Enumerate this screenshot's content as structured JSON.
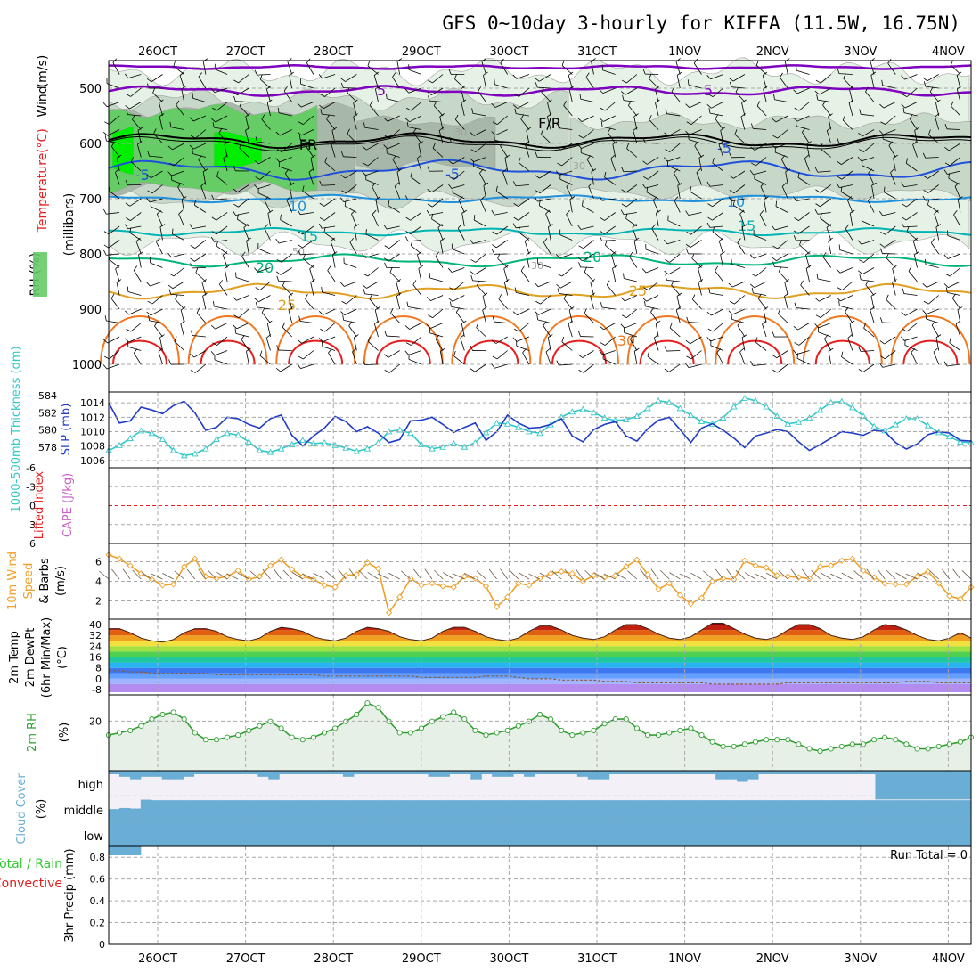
{
  "title": "GFS 0~10day 3-hourly for KIFFA (11.5W, 16.75N)",
  "colors": {
    "frame": "#000000",
    "grid": "#a8a8a8",
    "rh_light": "#e6f2e6",
    "rh_mid": "#c8d8c8",
    "rh_dark": "#a8b8a8",
    "rh_green": "#66cc66",
    "rh_bright": "#00ee00",
    "wind": "#000000",
    "temp_purple": "#8000c0",
    "temp_blue": "#1e50dc",
    "temp_sky": "#1e90dc",
    "temp_teal": "#00b4b4",
    "temp_green": "#00b478",
    "temp_gold": "#e0a020",
    "temp_orange": "#f07820",
    "temp_red": "#e61e1e",
    "slp": "#1e3cc8",
    "thickness": "#32c8c8",
    "cape": "#c864c8",
    "lifted": "#e61e1e",
    "wind10": "#f0a028",
    "rh2m": "#32a032",
    "rh2m_fill": "#e6f0e6",
    "cloud": "#6aaed6",
    "cloud_bg": "#f4f0f8",
    "precip_total": "#32c832",
    "precip_conv": "#e61e1e",
    "dewpt": "#8c5a3c"
  },
  "x_ticks": [
    "26OCT",
    "27OCT",
    "28OCT",
    "29OCT",
    "30OCT",
    "31OCT",
    "1NOV",
    "2NOV",
    "3NOV",
    "4NOV"
  ],
  "panels": {
    "upper": {
      "y_label_parts": [
        "RH (%)",
        "Temperature",
        "(°C)",
        "Wind",
        "(m/s)"
      ],
      "y_unit": "(millibars)",
      "y_ticks": [
        "500",
        "600",
        "700",
        "800",
        "900",
        "1000"
      ],
      "contour_labels": [
        "5",
        "5",
        "FR",
        "F/R",
        "-5",
        "-5",
        "-5",
        "10",
        "10",
        "15",
        "15",
        "20",
        "20",
        "25",
        "25",
        "30",
        "30",
        "30",
        "50",
        "50",
        "30"
      ]
    },
    "pressure": {
      "y_label_left": "1000-500mb Thickness (dm)",
      "y_label_right": "SLP (mb)",
      "y_ticks_left": [
        "584",
        "582",
        "580",
        "578"
      ],
      "y_ticks_right": [
        "1014",
        "1012",
        "1010",
        "1008",
        "1006"
      ]
    },
    "stability": {
      "y_label_left": "Lifted Index",
      "y_label_right": "CAPE (J/kg)",
      "y_ticks": [
        "-6",
        "-3",
        "0",
        "3",
        "6"
      ]
    },
    "wind10m": {
      "y_label": [
        "10m Wind",
        "Speed",
        "& Barbs",
        "(m/s)"
      ],
      "y_ticks": [
        "6",
        "4",
        "2"
      ]
    },
    "temp2m": {
      "y_label": [
        "2m Temp",
        "2m DewPt",
        "(6hr Min/Max)",
        "(°C)"
      ],
      "y_ticks": [
        "40",
        "32",
        "24",
        "16",
        "8",
        "0",
        "-8"
      ]
    },
    "rh2m": {
      "y_label": [
        "2m RH",
        "(%)"
      ],
      "y_ticks": [
        "20"
      ]
    },
    "cloud": {
      "y_label": [
        "Cloud Cover",
        "(%)"
      ],
      "levels": [
        "high",
        "middle",
        "low"
      ]
    },
    "precip": {
      "y_label": [
        "Total / Rain",
        "Convective",
        "3hr Precip (mm)"
      ],
      "y_ticks": [
        "0.8",
        "0.6",
        "0.4",
        "0.2",
        "0"
      ],
      "run_total": "Run Total = 0"
    }
  },
  "chart_data": {
    "type": "line",
    "n_steps": 81,
    "step_hours": 3,
    "slp_mb": [
      1014.0,
      1011.2,
      1011.5,
      1013.4,
      1013.0,
      1012.5,
      1013.6,
      1014.2,
      1012.6,
      1010.2,
      1010.6,
      1012.0,
      1011.8,
      1011.0,
      1010.5,
      1011.8,
      1012.3,
      1009.5,
      1008.0,
      1009.4,
      1010.5,
      1012.1,
      1011.4,
      1010.0,
      1010.7,
      1009.8,
      1008.5,
      1008.9,
      1011.5,
      1011.6,
      1012.0,
      1011.0,
      1009.9,
      1010.6,
      1011.2,
      1008.8,
      1010.0,
      1012.3,
      1011.2,
      1010.5,
      1010.6,
      1011.0,
      1011.8,
      1009.4,
      1008.6,
      1010.3,
      1011.0,
      1011.4,
      1009.4,
      1008.7,
      1010.4,
      1011.6,
      1012.0,
      1010.3,
      1008.5,
      1010.5,
      1011.1,
      1010.2,
      1009.1,
      1007.8,
      1009.4,
      1009.8,
      1010.3,
      1010.0,
      1008.6,
      1007.4,
      1008.2,
      1009.1,
      1010.0,
      1009.8,
      1009.5,
      1010.2,
      1010.0,
      1008.5,
      1007.6,
      1008.3,
      1009.6,
      1010.0,
      1009.8,
      1008.8,
      1008.7
    ],
    "thickness_dm": [
      577.6,
      578.2,
      579.0,
      579.9,
      579.6,
      578.9,
      577.6,
      577.0,
      577.2,
      577.8,
      578.9,
      579.6,
      579.4,
      578.6,
      577.6,
      577.4,
      577.8,
      578.3,
      578.8,
      578.4,
      578.5,
      578.2,
      577.9,
      577.5,
      577.8,
      578.5,
      579.8,
      580.0,
      579.6,
      578.3,
      577.8,
      578.0,
      578.4,
      578.0,
      578.5,
      579.7,
      580.8,
      580.7,
      580.3,
      579.8,
      579.6,
      580.6,
      581.5,
      582.1,
      582.4,
      582.0,
      581.4,
      581.1,
      581.2,
      581.6,
      582.5,
      583.4,
      583.2,
      582.5,
      581.7,
      581.0,
      580.7,
      581.4,
      582.7,
      583.7,
      583.4,
      582.7,
      581.6,
      580.7,
      580.9,
      581.4,
      582.3,
      583.2,
      583.3,
      582.6,
      581.6,
      580.4,
      579.9,
      580.6,
      581.3,
      581.3,
      580.5,
      579.7,
      579.2,
      578.6,
      578.5
    ],
    "wind10m_ms": [
      6.7,
      6.3,
      5.6,
      4.8,
      4.2,
      3.6,
      3.7,
      5.5,
      6.3,
      4.5,
      4.3,
      4.5,
      5.1,
      4.2,
      4.5,
      5.6,
      6.2,
      5.2,
      4.5,
      4.2,
      3.6,
      3.4,
      4.6,
      4.7,
      5.9,
      5.3,
      0.8,
      2.4,
      4.3,
      3.6,
      3.8,
      3.5,
      3.4,
      4.5,
      4.3,
      3.5,
      1.4,
      2.4,
      3.8,
      3.6,
      4.3,
      4.8,
      5.0,
      4.8,
      4.0,
      4.6,
      4.4,
      4.6,
      5.5,
      6.2,
      4.7,
      3.2,
      3.8,
      2.6,
      1.7,
      2.3,
      4.0,
      4.3,
      4.2,
      6.1,
      5.6,
      5.4,
      4.6,
      4.5,
      4.4,
      4.3,
      5.5,
      5.6,
      6.1,
      6.3,
      5.1,
      4.4,
      3.8,
      3.7,
      3.7,
      4.5,
      5.0,
      3.8,
      2.5,
      2.2,
      3.4
    ],
    "temp2m_c": [
      37,
      37,
      34,
      30,
      28,
      27,
      29,
      34,
      37,
      37,
      35,
      31,
      29,
      28,
      30,
      35,
      38,
      37,
      35,
      31,
      29,
      28,
      30,
      35,
      38,
      37,
      35,
      31,
      29,
      28,
      30,
      35,
      38,
      38,
      35,
      31,
      29,
      28,
      30,
      35,
      39,
      39,
      36,
      32,
      30,
      29,
      31,
      36,
      40,
      40,
      37,
      33,
      30,
      29,
      31,
      36,
      41,
      41,
      37,
      33,
      30,
      29,
      31,
      36,
      40,
      40,
      37,
      32,
      30,
      29,
      31,
      36,
      40,
      39,
      36,
      32,
      29,
      28,
      30,
      34,
      30
    ],
    "dewpt2m_c": [
      6,
      6,
      5,
      5,
      4,
      4,
      4,
      4,
      4,
      4,
      3,
      3,
      3,
      3,
      3,
      3,
      3,
      3,
      3,
      3,
      2,
      2,
      2,
      2,
      2,
      2,
      2,
      2,
      2,
      1,
      1,
      1,
      1,
      1,
      1,
      2,
      2,
      2,
      1,
      0,
      0,
      0,
      -1,
      -1,
      -1,
      -1,
      -2,
      -2,
      -2,
      -3,
      -3,
      -3,
      -3,
      -3,
      -3,
      -3,
      -4,
      -4,
      -4,
      -4,
      -4,
      -4,
      -4,
      -3,
      -3,
      -3,
      -3,
      -3,
      -3,
      -3,
      -3,
      -3,
      -3,
      -3,
      -2,
      -2,
      -2,
      -3,
      -3,
      -3,
      -3
    ],
    "rh2m_pct": [
      14,
      15,
      16,
      18,
      21,
      23,
      24,
      21,
      15,
      12,
      12,
      13,
      14,
      16,
      18,
      20,
      17,
      13,
      12,
      13,
      15,
      17,
      20,
      23,
      28,
      26,
      20,
      15,
      15,
      17,
      20,
      22,
      24,
      21,
      16,
      14,
      15,
      16,
      18,
      20,
      23,
      21,
      16,
      14,
      15,
      16,
      19,
      21,
      21,
      17,
      14,
      14,
      15,
      16,
      17,
      14,
      11,
      9,
      9,
      10,
      11,
      12,
      12,
      12,
      10,
      8,
      7,
      8,
      9,
      10,
      10,
      12,
      13,
      12,
      10,
      8,
      8,
      9,
      10,
      11,
      13
    ],
    "cloud_high_pct": [
      0,
      10,
      20,
      10,
      10,
      20,
      20,
      10,
      0,
      0,
      0,
      0,
      0,
      0,
      10,
      20,
      0,
      0,
      0,
      0,
      0,
      0,
      10,
      0,
      0,
      0,
      0,
      0,
      0,
      0,
      10,
      10,
      0,
      0,
      20,
      0,
      10,
      10,
      0,
      10,
      0,
      0,
      0,
      0,
      10,
      20,
      20,
      0,
      0,
      0,
      0,
      0,
      0,
      0,
      0,
      0,
      0,
      20,
      20,
      30,
      20,
      0,
      0,
      0,
      0,
      0,
      0,
      0,
      0,
      0,
      0,
      0,
      100,
      100,
      100,
      100,
      100,
      100,
      100,
      100,
      100
    ],
    "cloud_mid_pct": [
      20,
      40,
      30,
      30,
      20,
      20,
      20,
      20,
      20,
      20,
      20,
      20,
      20,
      20,
      20,
      20,
      20,
      20,
      20,
      20,
      20,
      20,
      20,
      20,
      20,
      20,
      20,
      20,
      20,
      20,
      20,
      20,
      20,
      20,
      20,
      20,
      20,
      20,
      20,
      20,
      20,
      20,
      20,
      20,
      20,
      20,
      20,
      20,
      20,
      20,
      20,
      20,
      20,
      20,
      20,
      20,
      20,
      20,
      20,
      20,
      20,
      20,
      20,
      20,
      20,
      20,
      20,
      20,
      20,
      20,
      20,
      20,
      20,
      20,
      20,
      20,
      20,
      20,
      20,
      20,
      20
    ],
    "precip_total_mm": [
      0,
      0,
      0,
      0,
      0,
      0,
      0,
      0,
      0,
      0,
      0,
      0,
      0,
      0,
      0,
      0,
      0,
      0,
      0,
      0,
      0,
      0,
      0,
      0,
      0,
      0,
      0,
      0,
      0,
      0,
      0,
      0,
      0,
      0,
      0,
      0,
      0,
      0,
      0,
      0,
      0,
      0,
      0,
      0,
      0,
      0,
      0,
      0,
      0,
      0,
      0,
      0,
      0,
      0,
      0,
      0,
      0,
      0,
      0,
      0,
      0,
      0,
      0,
      0,
      0,
      0,
      0,
      0,
      0,
      0,
      0,
      0,
      0,
      0,
      0,
      0,
      0,
      0,
      0,
      0,
      0
    ],
    "pressure_ylim": [
      450,
      1050
    ],
    "slp_ylim": [
      1005.5,
      1015
    ],
    "thickness_ylim": [
      576,
      584
    ],
    "wind10m_ylim": [
      0.5,
      7.5
    ],
    "temp2m_ylim": [
      -10,
      42
    ],
    "rh2m_ylim": [
      0,
      30
    ],
    "precip_ylim": [
      0,
      0.9
    ]
  }
}
